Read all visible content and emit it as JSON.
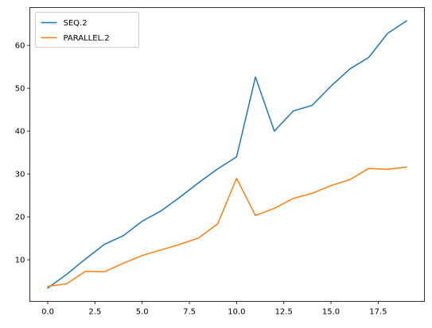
{
  "chart_data": {
    "type": "line",
    "title": "",
    "xlabel": "",
    "ylabel": "",
    "x": [
      0,
      1,
      2,
      3,
      4,
      5,
      6,
      7,
      8,
      9,
      10,
      11,
      12,
      13,
      14,
      15,
      16,
      17,
      18,
      19
    ],
    "series": [
      {
        "name": "SEQ.2",
        "color": "#1f77b4",
        "values": [
          3.4,
          6.6,
          10.2,
          13.6,
          15.6,
          19.0,
          21.4,
          24.6,
          28.0,
          31.2,
          34.0,
          52.6,
          40.0,
          44.7,
          46.0,
          50.5,
          54.5,
          57.2,
          62.8,
          65.7
        ]
      },
      {
        "name": "PARALLEL.2",
        "color": "#ff7f0e",
        "values": [
          3.8,
          4.4,
          7.3,
          7.2,
          9.2,
          11.0,
          12.3,
          13.6,
          15.1,
          18.4,
          29.0,
          20.3,
          22.0,
          24.3,
          25.5,
          27.3,
          28.7,
          31.3,
          31.1,
          31.6
        ]
      }
    ],
    "xlim": [
      -0.95,
      19.95
    ],
    "ylim": [
      0.29,
      68.82
    ],
    "x_ticks": [
      {
        "value": 0,
        "label": "0.0"
      },
      {
        "value": 2.5,
        "label": "2.5"
      },
      {
        "value": 5,
        "label": "5.0"
      },
      {
        "value": 7.5,
        "label": "7.5"
      },
      {
        "value": 10,
        "label": "10.0"
      },
      {
        "value": 12.5,
        "label": "12.5"
      },
      {
        "value": 15,
        "label": "15.0"
      },
      {
        "value": 17.5,
        "label": "17.5"
      }
    ],
    "y_ticks": [
      {
        "value": 10,
        "label": "10"
      },
      {
        "value": 20,
        "label": "20"
      },
      {
        "value": 30,
        "label": "30"
      },
      {
        "value": 40,
        "label": "40"
      },
      {
        "value": 50,
        "label": "50"
      },
      {
        "value": 60,
        "label": "60"
      }
    ],
    "grid": false,
    "legend_position": "top-left"
  }
}
